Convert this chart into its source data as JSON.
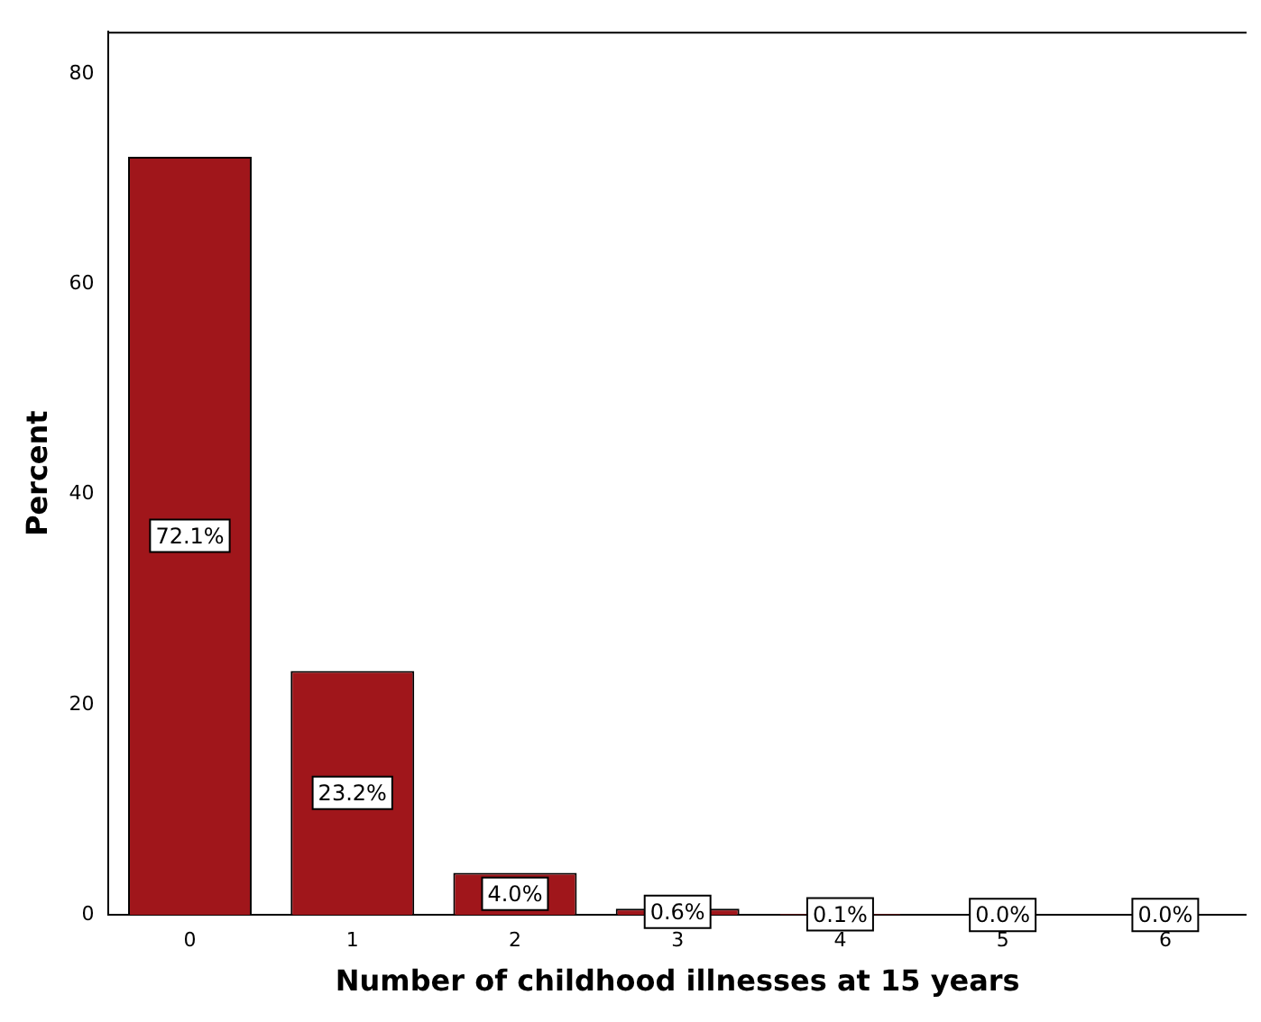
{
  "chart_data": {
    "type": "bar",
    "xlabel": "Number of childhood illnesses at 15 years",
    "ylabel": "Percent",
    "categories": [
      "0",
      "1",
      "2",
      "3",
      "4",
      "5",
      "6"
    ],
    "values": [
      72.1,
      23.2,
      4.0,
      0.6,
      0.1,
      0.0,
      0.0
    ],
    "value_labels": [
      "72.1%",
      "23.2%",
      "4.0%",
      "0.6%",
      "0.1%",
      "0.0%",
      "0.0%"
    ],
    "color": "#a0161b",
    "ylim": [
      0,
      84
    ],
    "yticks": [
      0,
      20,
      40,
      60,
      80
    ],
    "grid": false,
    "legend": false
  }
}
